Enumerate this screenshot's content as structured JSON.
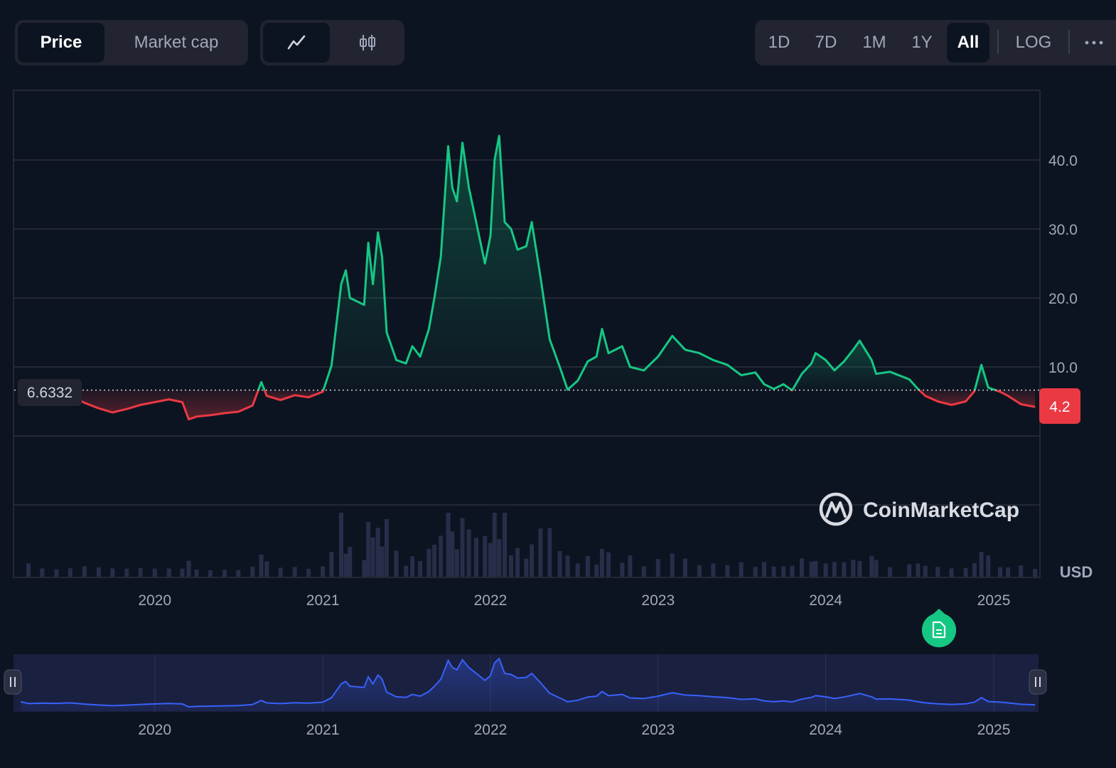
{
  "toolbar": {
    "metric_tabs": [
      {
        "label": "Price",
        "active": true
      },
      {
        "label": "Market cap",
        "active": false
      }
    ],
    "chart_types": [
      {
        "icon": "line-chart-icon",
        "active": true
      },
      {
        "icon": "candlestick-icon",
        "active": false
      }
    ],
    "ranges": [
      {
        "label": "1D",
        "active": false
      },
      {
        "label": "7D",
        "active": false
      },
      {
        "label": "1M",
        "active": false
      },
      {
        "label": "1Y",
        "active": false
      },
      {
        "label": "All",
        "active": true
      }
    ],
    "log_label": "LOG",
    "more_icon": "more-dots-icon"
  },
  "chart": {
    "reference_price": "6.6332",
    "current_price": "4.2",
    "currency": "USD",
    "brand": "CoinMarketCap",
    "note_icon": "document-note-icon",
    "colors": {
      "up": "#16c784",
      "down": "#ea3943",
      "navigator": "#3861fb",
      "background": "#0d1421"
    }
  },
  "chart_data": {
    "type": "line",
    "ylim": [
      0,
      46
    ],
    "yticks": [
      "10.0",
      "20.0",
      "30.0",
      "40.0"
    ],
    "xticks": [
      "2020",
      "2021",
      "2022",
      "2023",
      "2024",
      "2025"
    ],
    "reference_value": 6.6332,
    "series": [
      {
        "values": [
          [
            "2019-03-15",
            6.8
          ],
          [
            "2019-04-01",
            5.2
          ],
          [
            "2019-05-01",
            5.6
          ],
          [
            "2019-06-01",
            5.4
          ],
          [
            "2019-07-01",
            5.8
          ],
          [
            "2019-08-01",
            4.8
          ],
          [
            "2019-09-01",
            4.0
          ],
          [
            "2019-10-01",
            3.4
          ],
          [
            "2019-11-01",
            3.9
          ],
          [
            "2019-12-01",
            4.5
          ],
          [
            "2020-01-01",
            4.9
          ],
          [
            "2020-02-01",
            5.3
          ],
          [
            "2020-03-01",
            4.9
          ],
          [
            "2020-03-15",
            2.4
          ],
          [
            "2020-04-01",
            2.8
          ],
          [
            "2020-05-01",
            3.0
          ],
          [
            "2020-06-01",
            3.3
          ],
          [
            "2020-07-01",
            3.5
          ],
          [
            "2020-08-01",
            4.4
          ],
          [
            "2020-08-20",
            7.8
          ],
          [
            "2020-09-01",
            5.8
          ],
          [
            "2020-10-01",
            5.2
          ],
          [
            "2020-11-01",
            5.9
          ],
          [
            "2020-12-01",
            5.6
          ],
          [
            "2021-01-01",
            6.4
          ],
          [
            "2021-01-20",
            10.2
          ],
          [
            "2021-02-10",
            22.0
          ],
          [
            "2021-02-20",
            24.0
          ],
          [
            "2021-03-01",
            20.0
          ],
          [
            "2021-04-01",
            19.0
          ],
          [
            "2021-04-10",
            28.0
          ],
          [
            "2021-04-20",
            22.0
          ],
          [
            "2021-05-01",
            29.5
          ],
          [
            "2021-05-10",
            26.0
          ],
          [
            "2021-05-20",
            15.0
          ],
          [
            "2021-06-10",
            11.0
          ],
          [
            "2021-07-01",
            10.5
          ],
          [
            "2021-07-15",
            13.0
          ],
          [
            "2021-08-01",
            11.5
          ],
          [
            "2021-08-20",
            15.5
          ],
          [
            "2021-09-01",
            20.0
          ],
          [
            "2021-09-15",
            26.0
          ],
          [
            "2021-10-01",
            42.0
          ],
          [
            "2021-10-10",
            36.0
          ],
          [
            "2021-10-20",
            34.0
          ],
          [
            "2021-11-01",
            42.5
          ],
          [
            "2021-11-15",
            36.0
          ],
          [
            "2021-12-01",
            31.0
          ],
          [
            "2021-12-20",
            25.0
          ],
          [
            "2022-01-01",
            29.0
          ],
          [
            "2022-01-10",
            40.0
          ],
          [
            "2022-01-20",
            43.5
          ],
          [
            "2022-02-01",
            31.0
          ],
          [
            "2022-02-15",
            30.0
          ],
          [
            "2022-03-01",
            27.0
          ],
          [
            "2022-03-20",
            27.5
          ],
          [
            "2022-04-01",
            31.0
          ],
          [
            "2022-04-20",
            23.0
          ],
          [
            "2022-05-10",
            14.0
          ],
          [
            "2022-06-01",
            10.0
          ],
          [
            "2022-06-18",
            6.7
          ],
          [
            "2022-07-10",
            8.0
          ],
          [
            "2022-08-01",
            10.8
          ],
          [
            "2022-08-20",
            11.5
          ],
          [
            "2022-09-01",
            15.5
          ],
          [
            "2022-09-15",
            12.0
          ],
          [
            "2022-10-15",
            13.0
          ],
          [
            "2022-11-01",
            10.0
          ],
          [
            "2022-12-01",
            9.5
          ],
          [
            "2023-01-01",
            11.5
          ],
          [
            "2023-02-01",
            14.5
          ],
          [
            "2023-03-01",
            12.5
          ],
          [
            "2023-04-01",
            12.0
          ],
          [
            "2023-05-01",
            11.0
          ],
          [
            "2023-06-01",
            10.3
          ],
          [
            "2023-07-01",
            8.8
          ],
          [
            "2023-08-01",
            9.2
          ],
          [
            "2023-08-20",
            7.5
          ],
          [
            "2023-09-10",
            6.8
          ],
          [
            "2023-10-01",
            7.5
          ],
          [
            "2023-10-20",
            6.6
          ],
          [
            "2023-11-10",
            9.0
          ],
          [
            "2023-12-01",
            10.5
          ],
          [
            "2023-12-10",
            12.0
          ],
          [
            "2024-01-01",
            11.0
          ],
          [
            "2024-01-20",
            9.5
          ],
          [
            "2024-02-10",
            10.8
          ],
          [
            "2024-03-01",
            12.5
          ],
          [
            "2024-03-15",
            13.8
          ],
          [
            "2024-04-10",
            11.0
          ],
          [
            "2024-04-20",
            9.0
          ],
          [
            "2024-05-20",
            9.3
          ],
          [
            "2024-07-01",
            8.2
          ],
          [
            "2024-07-20",
            6.8
          ],
          [
            "2024-08-05",
            5.8
          ],
          [
            "2024-09-01",
            5.0
          ],
          [
            "2024-10-01",
            4.5
          ],
          [
            "2024-11-01",
            5.0
          ],
          [
            "2024-11-20",
            6.5
          ],
          [
            "2024-12-05",
            10.3
          ],
          [
            "2024-12-20",
            7.0
          ],
          [
            "2025-01-15",
            6.4
          ],
          [
            "2025-02-01",
            5.8
          ],
          [
            "2025-03-01",
            4.6
          ],
          [
            "2025-04-01",
            4.2
          ]
        ]
      }
    ],
    "current_value": 4.2
  }
}
